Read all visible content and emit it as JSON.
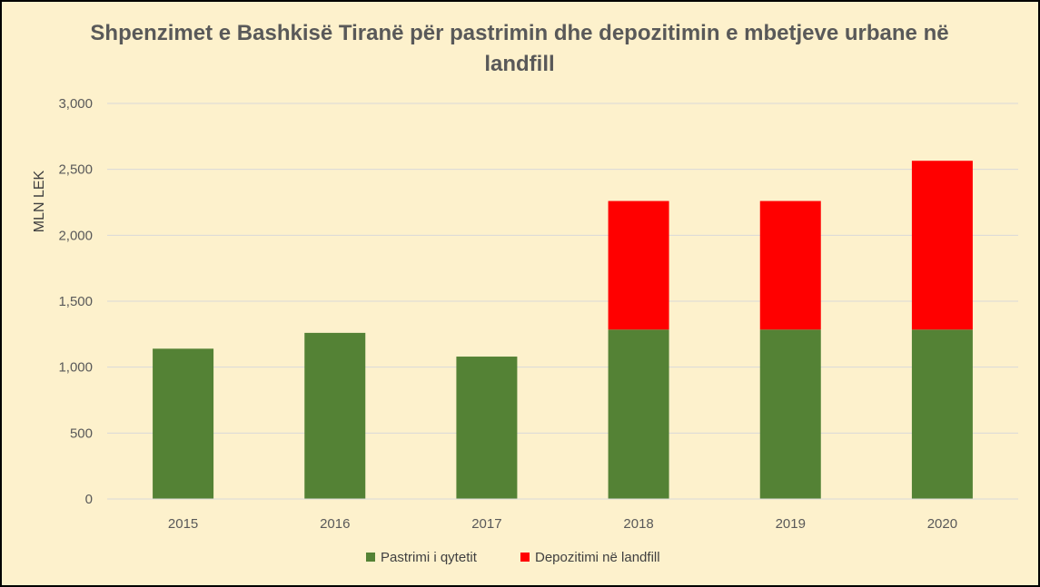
{
  "chart_data": {
    "type": "bar",
    "stacked": true,
    "title": "Shpenzimet e Bashkisë Tiranë për pastrimin dhe depozitimin e mbetjeve urbane në landfill",
    "ylabel": "MLN LEK",
    "xlabel": "",
    "ylim": [
      0,
      3000
    ],
    "yticks": [
      0,
      500,
      1000,
      1500,
      2000,
      2500,
      3000
    ],
    "ytick_labels": [
      "0",
      "500",
      "1,000",
      "1,500",
      "2,000",
      "2,500",
      "3,000"
    ],
    "categories": [
      "2015",
      "2016",
      "2017",
      "2018",
      "2019",
      "2020"
    ],
    "series": [
      {
        "name": "Pastrimi i qytetit",
        "color": "#548235",
        "values": [
          1140,
          1260,
          1080,
          1285,
          1285,
          1285
        ]
      },
      {
        "name": "Depozitimi në landfill",
        "color": "#ff0000",
        "values": [
          0,
          0,
          0,
          975,
          975,
          1280
        ]
      }
    ],
    "grid": true,
    "legend_position": "bottom"
  }
}
